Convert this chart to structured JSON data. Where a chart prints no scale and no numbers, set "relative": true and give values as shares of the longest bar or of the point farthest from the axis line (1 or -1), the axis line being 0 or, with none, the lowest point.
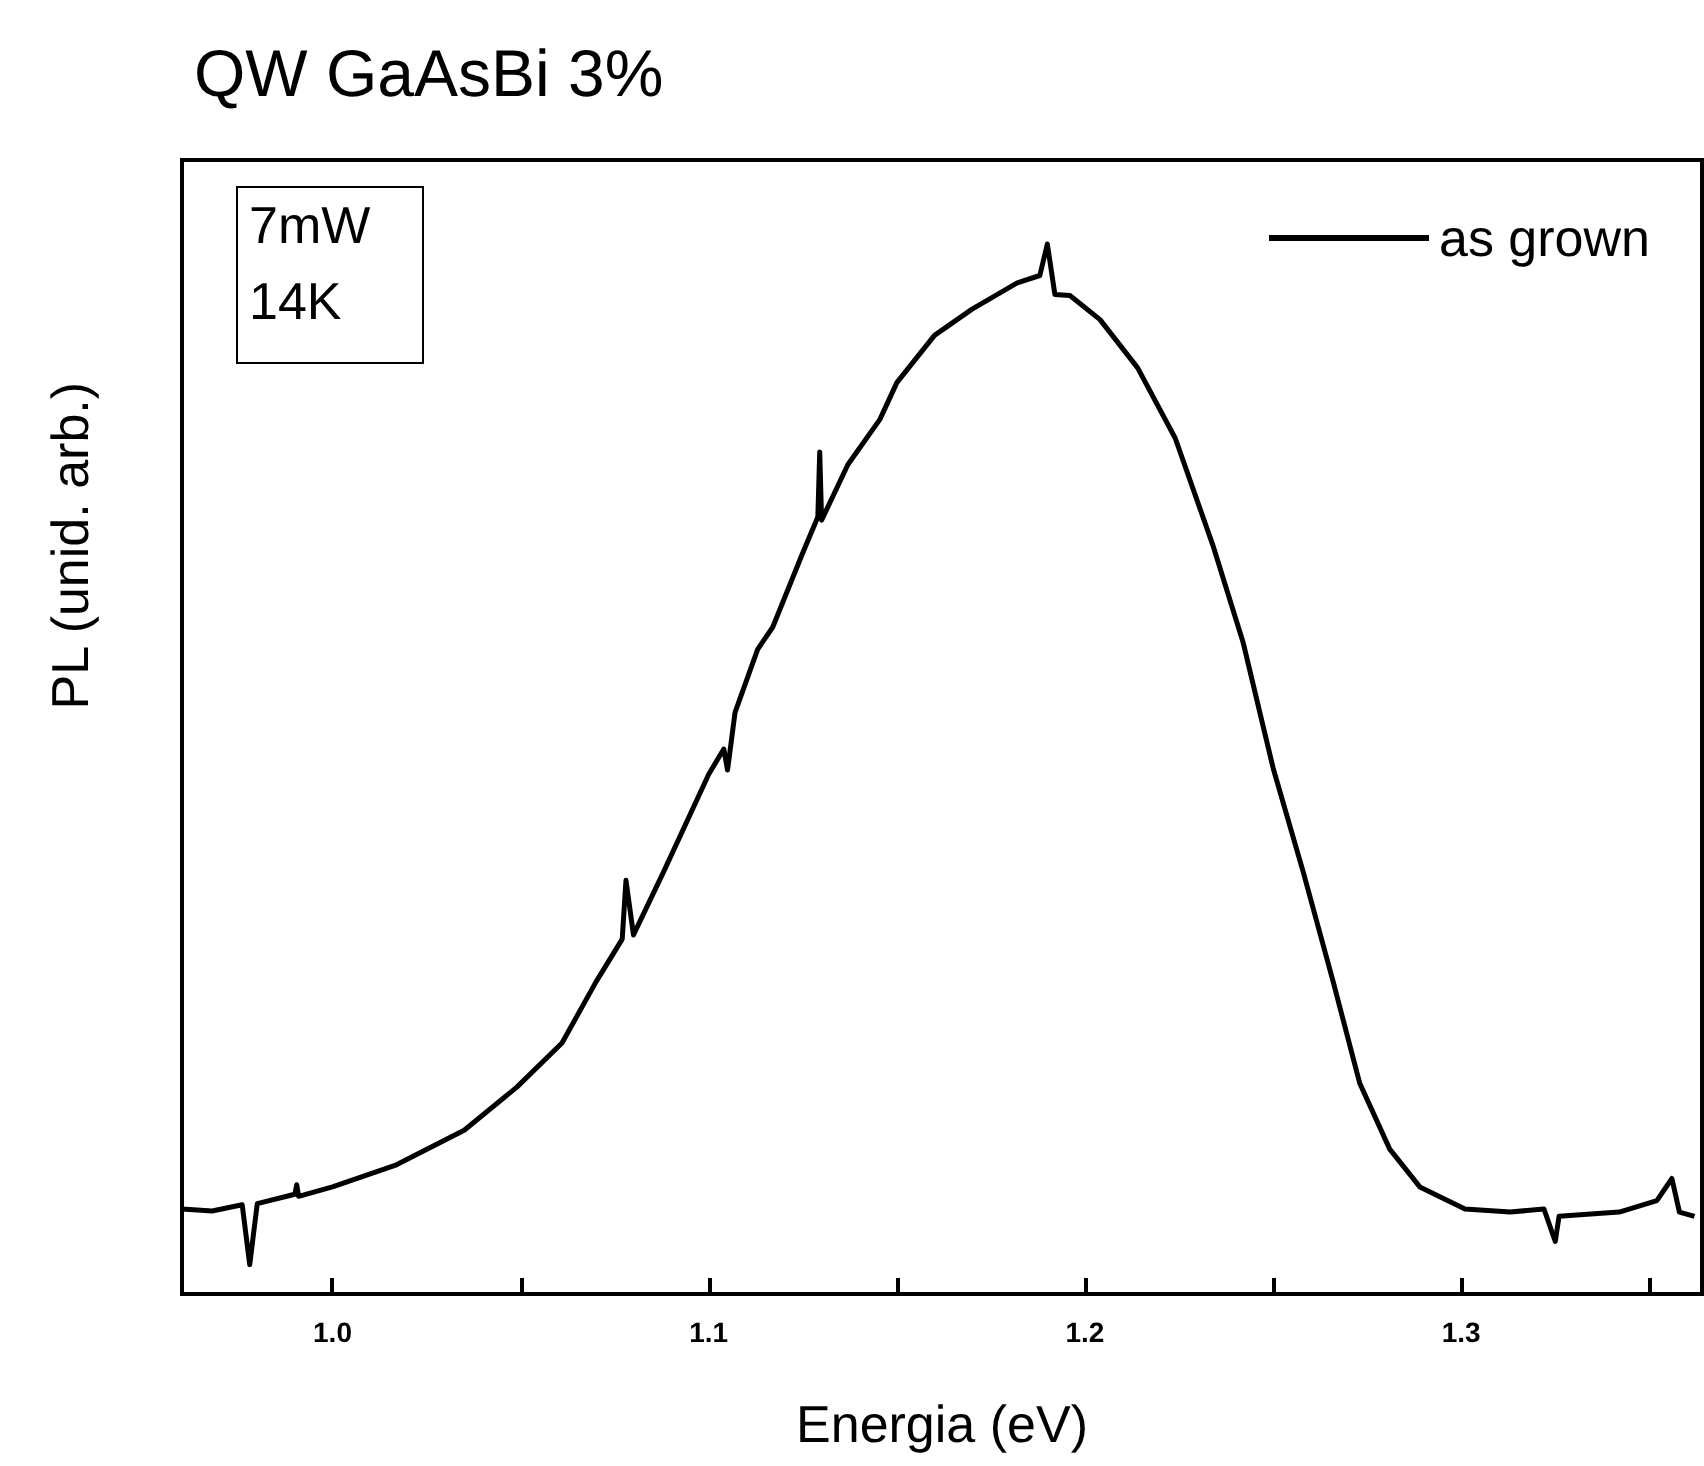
{
  "chart_data": {
    "type": "line",
    "title": "QW GaAsBi 3%",
    "xlabel": "Energia (eV)",
    "ylabel": "PL (unid. arb.)",
    "annotations": [
      "7mW",
      "14K"
    ],
    "relative": true,
    "legend": "top right",
    "marker": "none",
    "line_style": "solid",
    "grid": false,
    "xlim": [
      0.96,
      1.364
    ],
    "xticks": [
      {
        "value": 1,
        "label": "1.0"
      },
      {
        "value": 1.05,
        "label": null
      },
      {
        "value": 1.1,
        "label": "1.1"
      },
      {
        "value": 1.15,
        "label": null
      },
      {
        "value": 1.2,
        "label": "1.2"
      },
      {
        "value": 1.25,
        "label": null
      },
      {
        "value": 1.3,
        "label": "1.3"
      },
      {
        "value": 1.35,
        "label": null
      }
    ],
    "series": [
      {
        "name": "as grown",
        "color": "#000000",
        "x": [
          0.96,
          0.968,
          0.976,
          0.978,
          0.98,
          0.99,
          0.9905,
          0.991,
          1.0,
          1.017,
          1.035,
          1.049,
          1.061,
          1.07,
          1.077,
          1.078,
          1.08,
          1.088,
          1.1,
          1.104,
          1.105,
          1.107,
          1.113,
          1.117,
          1.125,
          1.129,
          1.1295,
          1.13,
          1.137,
          1.1455,
          1.15,
          1.16,
          1.17,
          1.182,
          1.188,
          1.19,
          1.192,
          1.196,
          1.204,
          1.214,
          1.224,
          1.234,
          1.242,
          1.25,
          1.258,
          1.266,
          1.273,
          1.281,
          1.289,
          1.301,
          1.313,
          1.322,
          1.325,
          1.326,
          1.342,
          1.352,
          1.356,
          1.358,
          1.362
        ],
        "values": [
          0.081,
          0.079,
          0.085,
          0.028,
          0.086,
          0.095,
          0.104,
          0.093,
          0.102,
          0.123,
          0.156,
          0.197,
          0.239,
          0.297,
          0.338,
          0.394,
          0.342,
          0.402,
          0.495,
          0.519,
          0.499,
          0.554,
          0.614,
          0.635,
          0.706,
          0.74,
          0.802,
          0.737,
          0.79,
          0.833,
          0.868,
          0.913,
          0.938,
          0.963,
          0.97,
          1.0,
          0.952,
          0.951,
          0.928,
          0.882,
          0.815,
          0.713,
          0.621,
          0.501,
          0.402,
          0.297,
          0.201,
          0.138,
          0.102,
          0.081,
          0.078,
          0.081,
          0.05,
          0.074,
          0.078,
          0.089,
          0.11,
          0.078,
          0.074
        ]
      }
    ]
  }
}
